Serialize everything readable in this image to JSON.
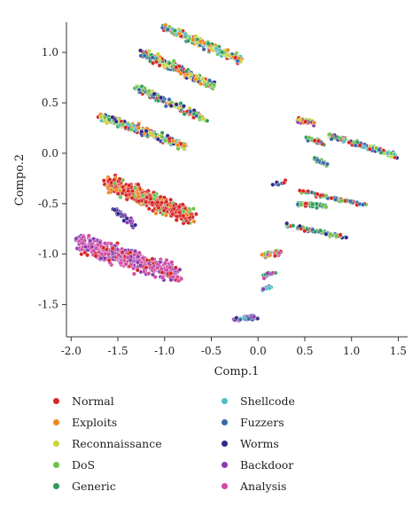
{
  "chart_data": {
    "type": "scatter",
    "title": "",
    "xlabel": "Comp.1",
    "ylabel": "Compo.2",
    "xlim": [
      -2.05,
      1.6
    ],
    "ylim": [
      -1.82,
      1.3
    ],
    "xticks": [
      -2.0,
      -1.5,
      -1.0,
      -0.5,
      0.0,
      0.5,
      1.0,
      1.5
    ],
    "xtick_labels": [
      "-2.0",
      "-1.5",
      "-1.0",
      "-0.5",
      "0.0",
      "0.5",
      "1.0",
      "1.5"
    ],
    "yticks": [
      1.0,
      0.5,
      0.0,
      -0.5,
      -1.0,
      -1.5
    ],
    "ytick_labels": [
      "1.0",
      "0.5",
      "0.0",
      "-0.5",
      "-1.0",
      "-1.5"
    ],
    "grid": false,
    "legend_position": "bottom",
    "legend": [
      {
        "name": "Normal",
        "color": "#d62728"
      },
      {
        "name": "Exploits",
        "color": "#f0881c"
      },
      {
        "name": "Reconnaissance",
        "color": "#c9d53a"
      },
      {
        "name": "DoS",
        "color": "#6cc24a"
      },
      {
        "name": "Generic",
        "color": "#2e9c5a"
      },
      {
        "name": "Shellcode",
        "color": "#4ebfc2"
      },
      {
        "name": "Fuzzers",
        "color": "#3a6aa8"
      },
      {
        "name": "Worms",
        "color": "#2f2a8a"
      },
      {
        "name": "Backdoor",
        "color": "#8a3bb0"
      },
      {
        "name": "Analysis",
        "color": "#d04aa4"
      }
    ],
    "clusters": [
      {
        "from": [
          -1.0,
          1.25
        ],
        "to": [
          -0.18,
          0.92
        ],
        "spread": 0.035,
        "n": 260,
        "series": [
          3,
          4,
          1,
          0,
          6,
          2,
          5
        ]
      },
      {
        "from": [
          -1.25,
          1.0
        ],
        "to": [
          -0.48,
          0.67
        ],
        "spread": 0.035,
        "n": 240,
        "series": [
          2,
          3,
          4,
          0,
          1,
          6,
          7
        ]
      },
      {
        "from": [
          -1.3,
          0.65
        ],
        "to": [
          -0.55,
          0.33
        ],
        "spread": 0.03,
        "n": 170,
        "series": [
          4,
          3,
          6,
          7,
          2,
          0
        ]
      },
      {
        "from": [
          -1.7,
          0.37
        ],
        "to": [
          -0.78,
          0.07
        ],
        "spread": 0.035,
        "n": 230,
        "series": [
          3,
          2,
          4,
          1,
          0,
          5,
          7
        ]
      },
      {
        "from": [
          -1.6,
          -0.3
        ],
        "to": [
          -0.7,
          -0.63
        ],
        "spread": 0.07,
        "n": 520,
        "series": [
          0,
          0,
          0,
          0,
          0,
          1,
          3
        ]
      },
      {
        "from": [
          -1.92,
          -0.88
        ],
        "to": [
          -0.85,
          -1.2
        ],
        "spread": 0.08,
        "n": 520,
        "series": [
          8,
          9,
          9,
          8,
          9,
          0
        ]
      },
      {
        "from": [
          0.75,
          0.18
        ],
        "to": [
          1.5,
          -0.03
        ],
        "spread": 0.022,
        "n": 140,
        "series": [
          5,
          3,
          4,
          6,
          7,
          2,
          0
        ]
      },
      {
        "from": [
          0.42,
          0.33
        ],
        "to": [
          0.6,
          0.3
        ],
        "spread": 0.02,
        "n": 40,
        "series": [
          0,
          8,
          1,
          2,
          4
        ]
      },
      {
        "from": [
          0.52,
          0.15
        ],
        "to": [
          0.7,
          0.1
        ],
        "spread": 0.02,
        "n": 30,
        "series": [
          3,
          4,
          6,
          0
        ]
      },
      {
        "from": [
          0.6,
          -0.05
        ],
        "to": [
          0.75,
          -0.12
        ],
        "spread": 0.018,
        "n": 22,
        "series": [
          4,
          3,
          6
        ]
      },
      {
        "from": [
          0.45,
          -0.38
        ],
        "to": [
          1.15,
          -0.51
        ],
        "spread": 0.015,
        "n": 70,
        "series": [
          0,
          3,
          6,
          4
        ]
      },
      {
        "from": [
          0.4,
          -0.5
        ],
        "to": [
          0.72,
          -0.52
        ],
        "spread": 0.018,
        "n": 40,
        "series": [
          4,
          6,
          3,
          0
        ]
      },
      {
        "from": [
          0.3,
          -0.71
        ],
        "to": [
          0.95,
          -0.84
        ],
        "spread": 0.015,
        "n": 70,
        "series": [
          0,
          3,
          4,
          6,
          7
        ]
      },
      {
        "from": [
          0.05,
          -1.01
        ],
        "to": [
          0.25,
          -0.98
        ],
        "spread": 0.025,
        "n": 40,
        "series": [
          0,
          1,
          3,
          9
        ]
      },
      {
        "from": [
          0.05,
          -1.22
        ],
        "to": [
          0.18,
          -1.18
        ],
        "spread": 0.02,
        "n": 18,
        "series": [
          8,
          9,
          4
        ]
      },
      {
        "from": [
          0.05,
          -1.35
        ],
        "to": [
          0.15,
          -1.32
        ],
        "spread": 0.015,
        "n": 12,
        "series": [
          8,
          5,
          6
        ]
      },
      {
        "from": [
          -0.25,
          -1.65
        ],
        "to": [
          -0.02,
          -1.62
        ],
        "spread": 0.02,
        "n": 55,
        "series": [
          6,
          7,
          5,
          8
        ]
      },
      {
        "from": [
          -1.55,
          -0.55
        ],
        "to": [
          -1.3,
          -0.72
        ],
        "spread": 0.03,
        "n": 40,
        "series": [
          7,
          8,
          7
        ]
      },
      {
        "from": [
          0.1,
          -0.3
        ],
        "to": [
          0.3,
          -0.3
        ],
        "spread": 0.02,
        "n": 8,
        "series": [
          7,
          0,
          6
        ]
      }
    ]
  }
}
